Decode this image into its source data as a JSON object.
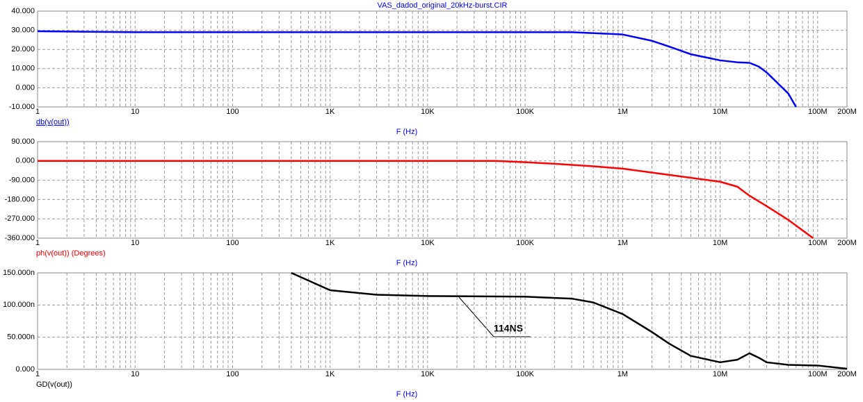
{
  "chart_data": [
    {
      "type": "line",
      "title": "VAS_dadod_original_20kHz-burst.CIR",
      "x_label": "F (Hz)",
      "y_label": "db(v(out))",
      "log_x": true,
      "grid": true,
      "x": [
        1,
        10,
        100,
        1000,
        10000,
        100000,
        300000,
        1000000,
        2000000,
        3000000,
        5000000,
        10000000,
        15000000,
        20000000,
        25000000,
        30000000,
        50000000,
        60000000
      ],
      "series": [
        {
          "name": "db(v(out))",
          "color": "#0000ff",
          "values": [
            29.5,
            29,
            29,
            29,
            29,
            29,
            29,
            27.8,
            24.5,
            21.5,
            17.5,
            14.3,
            13.3,
            13,
            11,
            8,
            -3,
            -10
          ]
        }
      ],
      "xlim": [
        1,
        200000000
      ],
      "xticks": [
        1,
        10,
        100,
        {
          "value": 1000,
          "label": "1K"
        },
        {
          "value": 10000,
          "label": "10K"
        },
        {
          "value": 100000,
          "label": "100K"
        },
        {
          "value": 1000000,
          "label": "1M"
        },
        {
          "value": 10000000,
          "label": "10M"
        },
        {
          "value": 100000000,
          "label": "100M"
        },
        {
          "value": 200000000,
          "label": "200M"
        }
      ],
      "ylim": [
        -10,
        40
      ],
      "yticks": [
        {
          "value": -10,
          "label": "-10.000"
        },
        {
          "value": 0,
          "label": "0.000"
        },
        {
          "value": 10,
          "label": "10.000"
        },
        {
          "value": 20,
          "label": "20.000"
        },
        {
          "value": 30,
          "label": "30.000"
        },
        {
          "value": 40,
          "label": "40.000"
        }
      ]
    },
    {
      "type": "line",
      "x_label": "F (Hz)",
      "y_label": "ph(v(out)) (Degrees)",
      "log_x": true,
      "grid": true,
      "x": [
        1,
        10,
        100,
        1000,
        10000,
        50000,
        100000,
        200000,
        500000,
        1000000,
        3000000,
        10000000,
        15000000,
        20000000,
        30000000,
        50000000,
        90000000
      ],
      "series": [
        {
          "name": "ph(v(out))",
          "color": "#ff0000",
          "values": [
            0,
            0,
            0,
            0,
            0,
            0,
            -6,
            -13,
            -25,
            -36,
            -65,
            -97,
            -120,
            -162,
            -211,
            -275,
            -360
          ]
        }
      ],
      "xlim": [
        1,
        200000000
      ],
      "xticks": [
        1,
        10,
        100,
        {
          "value": 1000,
          "label": "1K"
        },
        {
          "value": 10000,
          "label": "10K"
        },
        {
          "value": 100000,
          "label": "100K"
        },
        {
          "value": 1000000,
          "label": "1M"
        },
        {
          "value": 10000000,
          "label": "10M"
        },
        {
          "value": 100000000,
          "label": "100M"
        },
        {
          "value": 200000000,
          "label": "200M"
        }
      ],
      "ylim": [
        -360,
        90
      ],
      "yticks": [
        {
          "value": -360,
          "label": "-360.000"
        },
        {
          "value": -270,
          "label": "-270.000"
        },
        {
          "value": -180,
          "label": "-180.000"
        },
        {
          "value": -90,
          "label": "-90.000"
        },
        {
          "value": 0,
          "label": "0.000"
        },
        {
          "value": 90,
          "label": "90.000"
        }
      ]
    },
    {
      "type": "line",
      "x_label": "F (Hz)",
      "y_label": "GD(v(out))",
      "log_x": true,
      "grid": true,
      "annotation": "114NS",
      "x": [
        400,
        1000,
        3000,
        10000,
        100000,
        300000,
        500000,
        1000000,
        2000000,
        3000000,
        5000000,
        10000000,
        15000000,
        20000000,
        25000000,
        30000000,
        50000000,
        100000000,
        200000000
      ],
      "series": [
        {
          "name": "GD(v(out))",
          "color": "#000000",
          "values": [
            1.5e-07,
            1.23e-07,
            1.16e-07,
            1.14e-07,
            1.13e-07,
            1.1e-07,
            1.04e-07,
            8.6e-08,
            5.8e-08,
            4e-08,
            2.1e-08,
            1.1e-08,
            1.5e-08,
            2.5e-08,
            1.8e-08,
            1.1e-08,
            7e-09,
            6e-09,
            1e-09
          ]
        }
      ],
      "xlim": [
        1,
        200000000
      ],
      "xticks": [
        1,
        10,
        100,
        {
          "value": 1000,
          "label": "1K"
        },
        {
          "value": 10000,
          "label": "10K"
        },
        {
          "value": 100000,
          "label": "100K"
        },
        {
          "value": 1000000,
          "label": "1M"
        },
        {
          "value": 10000000,
          "label": "10M"
        },
        {
          "value": 100000000,
          "label": "100M"
        },
        {
          "value": 200000000,
          "label": "200M"
        }
      ],
      "ylim": [
        0,
        1.5e-07
      ],
      "yticks": [
        {
          "value": 0,
          "label": "0.000"
        },
        {
          "value": 5e-08,
          "label": "50.000n"
        },
        {
          "value": 1e-07,
          "label": "100.000n"
        },
        {
          "value": 1.5e-07,
          "label": "150.000n"
        }
      ]
    }
  ]
}
